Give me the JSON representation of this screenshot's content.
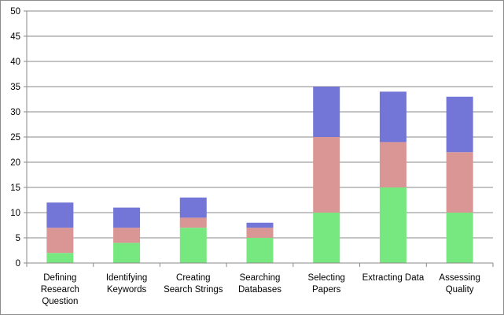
{
  "chart_data": {
    "type": "bar",
    "stacked": true,
    "categories": [
      [
        "Defining",
        "Research",
        "Question"
      ],
      [
        "Identifying",
        "Keywords"
      ],
      [
        "Creating",
        "Search Strings"
      ],
      [
        "Searching",
        "Databases"
      ],
      [
        "Selecting",
        "Papers"
      ],
      [
        "Extracting Data"
      ],
      [
        "Assessing",
        "Quality"
      ]
    ],
    "series": [
      {
        "color": "#77e87f",
        "values": [
          2,
          4,
          7,
          5,
          10,
          15,
          10
        ]
      },
      {
        "color": "#d99694",
        "values": [
          5,
          3,
          2,
          2,
          15,
          9,
          12
        ]
      },
      {
        "color": "#7376d6",
        "values": [
          5,
          4,
          4,
          1,
          10,
          10,
          11
        ]
      }
    ],
    "ylim": [
      0,
      50
    ],
    "yticks": [
      0,
      5,
      10,
      15,
      20,
      25,
      30,
      35,
      40,
      45,
      50
    ],
    "grid": true,
    "legend": "none",
    "title": "",
    "xlabel": "",
    "ylabel": ""
  }
}
